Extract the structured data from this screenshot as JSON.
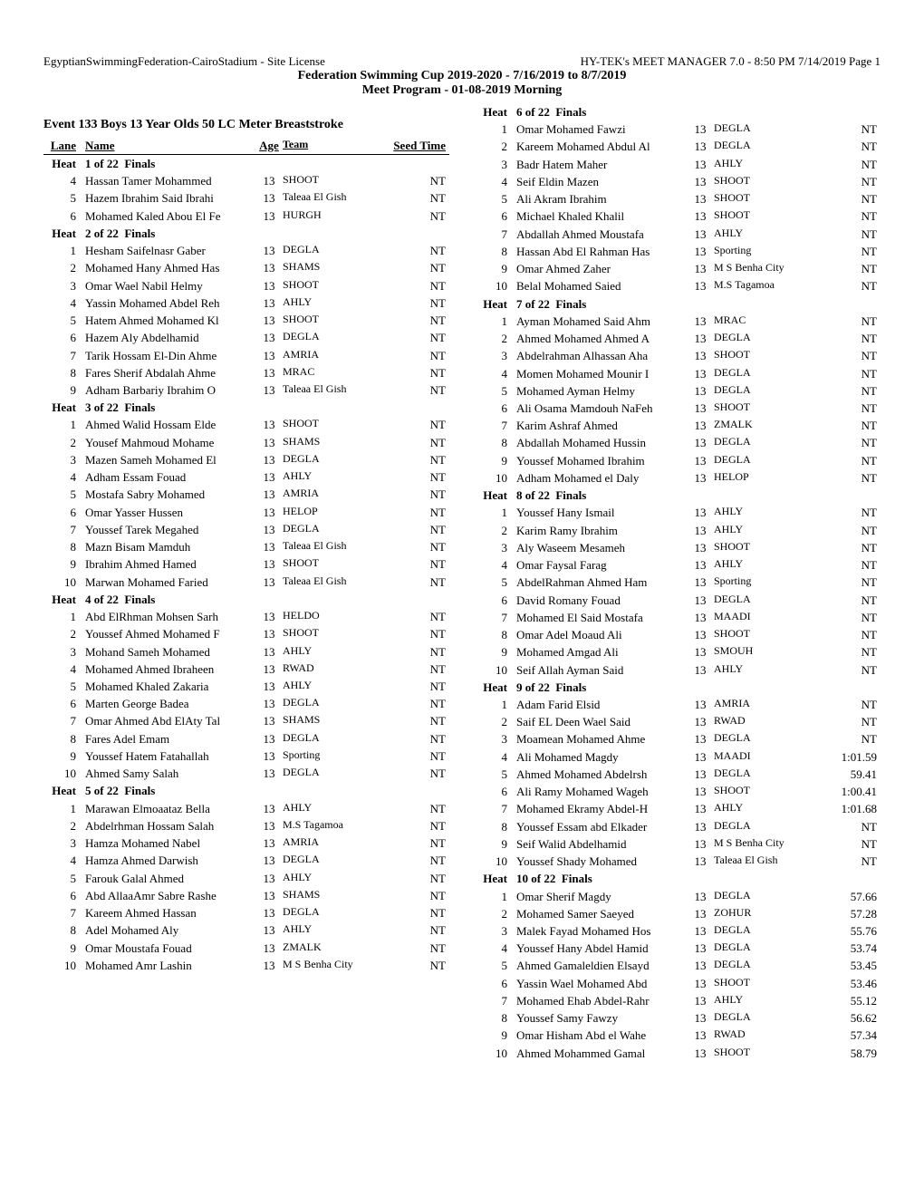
{
  "header": {
    "left": "EgyptianSwimmingFederation-CairoStadium - Site License",
    "right": "HY-TEK's MEET MANAGER 7.0 - 8:50 PM  7/14/2019  Page 1",
    "line2": "Federation Swimming Cup 2019-2020 - 7/16/2019 to 8/7/2019",
    "line3": "Meet Program - 01-08-2019 Morning"
  },
  "event_title": "Event  133   Boys 13 Year Olds 50 LC Meter Breaststroke",
  "thead": {
    "lane": "Lane",
    "name": "Name",
    "age": "Age",
    "team": "Team",
    "seed": "Seed Time"
  },
  "heat_prefix": "Heat",
  "heat_suffix": "Finals",
  "left_heats": [
    {
      "num": "1 of 22",
      "rows": [
        {
          "lane": "4",
          "name": "Hassan Tamer Mohammed",
          "age": "13",
          "team": "SHOOT",
          "seed": "NT"
        },
        {
          "lane": "5",
          "name": "Hazem Ibrahim Said Ibrahi",
          "age": "13",
          "team": "Taleaa El Gish",
          "seed": "NT"
        },
        {
          "lane": "6",
          "name": "Mohamed Kaled Abou El Fe",
          "age": "13",
          "team": "HURGH",
          "seed": "NT"
        }
      ]
    },
    {
      "num": "2 of 22",
      "rows": [
        {
          "lane": "1",
          "name": "Hesham Saifelnasr Gaber",
          "age": "13",
          "team": "DEGLA",
          "seed": "NT"
        },
        {
          "lane": "2",
          "name": "Mohamed Hany Ahmed Has",
          "age": "13",
          "team": "SHAMS",
          "seed": "NT"
        },
        {
          "lane": "3",
          "name": "Omar Wael Nabil Helmy",
          "age": "13",
          "team": "SHOOT",
          "seed": "NT"
        },
        {
          "lane": "4",
          "name": "Yassin Mohamed Abdel Reh",
          "age": "13",
          "team": "AHLY",
          "seed": "NT"
        },
        {
          "lane": "5",
          "name": "Hatem Ahmed Mohamed Kl",
          "age": "13",
          "team": "SHOOT",
          "seed": "NT"
        },
        {
          "lane": "6",
          "name": "Hazem Aly Abdelhamid",
          "age": "13",
          "team": "DEGLA",
          "seed": "NT"
        },
        {
          "lane": "7",
          "name": "Tarik Hossam El-Din Ahme",
          "age": "13",
          "team": "AMRIA",
          "seed": "NT"
        },
        {
          "lane": "8",
          "name": "Fares Sherif Abdalah Ahme",
          "age": "13",
          "team": "MRAC",
          "seed": "NT"
        },
        {
          "lane": "9",
          "name": "Adham Barbariy Ibrahim O",
          "age": "13",
          "team": "Taleaa El Gish",
          "seed": "NT"
        }
      ]
    },
    {
      "num": "3 of 22",
      "rows": [
        {
          "lane": "1",
          "name": "Ahmed Walid Hossam Elde",
          "age": "13",
          "team": "SHOOT",
          "seed": "NT"
        },
        {
          "lane": "2",
          "name": "Yousef Mahmoud Mohame",
          "age": "13",
          "team": "SHAMS",
          "seed": "NT"
        },
        {
          "lane": "3",
          "name": "Mazen Sameh Mohamed El",
          "age": "13",
          "team": "DEGLA",
          "seed": "NT"
        },
        {
          "lane": "4",
          "name": "Adham Essam Fouad",
          "age": "13",
          "team": "AHLY",
          "seed": "NT"
        },
        {
          "lane": "5",
          "name": "Mostafa Sabry Mohamed",
          "age": "13",
          "team": "AMRIA",
          "seed": "NT"
        },
        {
          "lane": "6",
          "name": "Omar Yasser Hussen",
          "age": "13",
          "team": "HELOP",
          "seed": "NT"
        },
        {
          "lane": "7",
          "name": "Youssef Tarek Megahed",
          "age": "13",
          "team": "DEGLA",
          "seed": "NT"
        },
        {
          "lane": "8",
          "name": "Mazn Bisam Mamduh",
          "age": "13",
          "team": "Taleaa El Gish",
          "seed": "NT"
        },
        {
          "lane": "9",
          "name": "Ibrahim Ahmed Hamed",
          "age": "13",
          "team": "SHOOT",
          "seed": "NT"
        },
        {
          "lane": "10",
          "name": "Marwan Mohamed Faried",
          "age": "13",
          "team": "Taleaa El Gish",
          "seed": "NT"
        }
      ]
    },
    {
      "num": "4 of 22",
      "rows": [
        {
          "lane": "1",
          "name": "Abd ElRhman Mohsen Sarh",
          "age": "13",
          "team": "HELDO",
          "seed": "NT"
        },
        {
          "lane": "2",
          "name": "Youssef Ahmed Mohamed F",
          "age": "13",
          "team": "SHOOT",
          "seed": "NT"
        },
        {
          "lane": "3",
          "name": "Mohand Sameh Mohamed",
          "age": "13",
          "team": "AHLY",
          "seed": "NT"
        },
        {
          "lane": "4",
          "name": "Mohamed Ahmed Ibraheen",
          "age": "13",
          "team": "RWAD",
          "seed": "NT"
        },
        {
          "lane": "5",
          "name": "Mohamed Khaled Zakaria",
          "age": "13",
          "team": "AHLY",
          "seed": "NT"
        },
        {
          "lane": "6",
          "name": "Marten George Badea",
          "age": "13",
          "team": "DEGLA",
          "seed": "NT"
        },
        {
          "lane": "7",
          "name": "Omar Ahmed Abd ElAty Tal",
          "age": "13",
          "team": "SHAMS",
          "seed": "NT"
        },
        {
          "lane": "8",
          "name": "Fares Adel Emam",
          "age": "13",
          "team": "DEGLA",
          "seed": "NT"
        },
        {
          "lane": "9",
          "name": "Youssef Hatem Fatahallah",
          "age": "13",
          "team": "Sporting",
          "seed": "NT"
        },
        {
          "lane": "10",
          "name": "Ahmed Samy Salah",
          "age": "13",
          "team": "DEGLA",
          "seed": "NT"
        }
      ]
    },
    {
      "num": "5 of 22",
      "rows": [
        {
          "lane": "1",
          "name": "Marawan Elmoaataz Bella",
          "age": "13",
          "team": "AHLY",
          "seed": "NT"
        },
        {
          "lane": "2",
          "name": "Abdelrhman Hossam Salah",
          "age": "13",
          "team": "M.S Tagamoa",
          "seed": "NT"
        },
        {
          "lane": "3",
          "name": "Hamza Mohamed Nabel",
          "age": "13",
          "team": "AMRIA",
          "seed": "NT"
        },
        {
          "lane": "4",
          "name": "Hamza Ahmed Darwish",
          "age": "13",
          "team": "DEGLA",
          "seed": "NT"
        },
        {
          "lane": "5",
          "name": "Farouk Galal Ahmed",
          "age": "13",
          "team": "AHLY",
          "seed": "NT"
        },
        {
          "lane": "6",
          "name": "Abd AllaaAmr Sabre Rashe",
          "age": "13",
          "team": "SHAMS",
          "seed": "NT"
        },
        {
          "lane": "7",
          "name": "Kareem Ahmed Hassan",
          "age": "13",
          "team": "DEGLA",
          "seed": "NT"
        },
        {
          "lane": "8",
          "name": "Adel Mohamed Aly",
          "age": "13",
          "team": "AHLY",
          "seed": "NT"
        },
        {
          "lane": "9",
          "name": "Omar Moustafa Fouad",
          "age": "13",
          "team": "ZMALK",
          "seed": "NT"
        },
        {
          "lane": "10",
          "name": "Mohamed Amr Lashin",
          "age": "13",
          "team": "M S Benha City",
          "seed": "NT"
        }
      ]
    }
  ],
  "right_heats": [
    {
      "num": "6 of 22",
      "rows": [
        {
          "lane": "1",
          "name": "Omar Mohamed Fawzi",
          "age": "13",
          "team": "DEGLA",
          "seed": "NT"
        },
        {
          "lane": "2",
          "name": "Kareem Mohamed Abdul Al",
          "age": "13",
          "team": "DEGLA",
          "seed": "NT"
        },
        {
          "lane": "3",
          "name": "Badr Hatem Maher",
          "age": "13",
          "team": "AHLY",
          "seed": "NT"
        },
        {
          "lane": "4",
          "name": "Seif Eldin Mazen",
          "age": "13",
          "team": "SHOOT",
          "seed": "NT"
        },
        {
          "lane": "5",
          "name": "Ali Akram Ibrahim",
          "age": "13",
          "team": "SHOOT",
          "seed": "NT"
        },
        {
          "lane": "6",
          "name": "Michael Khaled Khalil",
          "age": "13",
          "team": "SHOOT",
          "seed": "NT"
        },
        {
          "lane": "7",
          "name": "Abdallah Ahmed Moustafa",
          "age": "13",
          "team": "AHLY",
          "seed": "NT"
        },
        {
          "lane": "8",
          "name": "Hassan Abd El Rahman Has",
          "age": "13",
          "team": "Sporting",
          "seed": "NT"
        },
        {
          "lane": "9",
          "name": "Omar Ahmed Zaher",
          "age": "13",
          "team": "M S Benha City",
          "seed": "NT"
        },
        {
          "lane": "10",
          "name": "Belal Mohamed Saied",
          "age": "13",
          "team": "M.S Tagamoa",
          "seed": "NT"
        }
      ]
    },
    {
      "num": "7 of 22",
      "rows": [
        {
          "lane": "1",
          "name": "Ayman Mohamed Said Ahm",
          "age": "13",
          "team": "MRAC",
          "seed": "NT"
        },
        {
          "lane": "2",
          "name": "Ahmed Mohamed Ahmed A",
          "age": "13",
          "team": "DEGLA",
          "seed": "NT"
        },
        {
          "lane": "3",
          "name": "Abdelrahman Alhassan Aha",
          "age": "13",
          "team": "SHOOT",
          "seed": "NT"
        },
        {
          "lane": "4",
          "name": "Momen Mohamed Mounir I",
          "age": "13",
          "team": "DEGLA",
          "seed": "NT"
        },
        {
          "lane": "5",
          "name": "Mohamed Ayman Helmy",
          "age": "13",
          "team": "DEGLA",
          "seed": "NT"
        },
        {
          "lane": "6",
          "name": "Ali Osama Mamdouh NaFeh",
          "age": "13",
          "team": "SHOOT",
          "seed": "NT"
        },
        {
          "lane": "7",
          "name": "Karim Ashraf Ahmed",
          "age": "13",
          "team": "ZMALK",
          "seed": "NT"
        },
        {
          "lane": "8",
          "name": "Abdallah Mohamed Hussin",
          "age": "13",
          "team": "DEGLA",
          "seed": "NT"
        },
        {
          "lane": "9",
          "name": "Youssef Mohamed Ibrahim",
          "age": "13",
          "team": "DEGLA",
          "seed": "NT"
        },
        {
          "lane": "10",
          "name": "Adham Mohamed el Daly",
          "age": "13",
          "team": "HELOP",
          "seed": "NT"
        }
      ]
    },
    {
      "num": "8 of 22",
      "rows": [
        {
          "lane": "1",
          "name": "Youssef Hany Ismail",
          "age": "13",
          "team": "AHLY",
          "seed": "NT"
        },
        {
          "lane": "2",
          "name": "Karim Ramy Ibrahim",
          "age": "13",
          "team": "AHLY",
          "seed": "NT"
        },
        {
          "lane": "3",
          "name": "Aly Waseem Mesameh",
          "age": "13",
          "team": "SHOOT",
          "seed": "NT"
        },
        {
          "lane": "4",
          "name": "Omar Faysal Farag",
          "age": "13",
          "team": "AHLY",
          "seed": "NT"
        },
        {
          "lane": "5",
          "name": "AbdelRahman Ahmed Ham",
          "age": "13",
          "team": "Sporting",
          "seed": "NT"
        },
        {
          "lane": "6",
          "name": "David Romany Fouad",
          "age": "13",
          "team": "DEGLA",
          "seed": "NT"
        },
        {
          "lane": "7",
          "name": "Mohamed El Said Mostafa",
          "age": "13",
          "team": "MAADI",
          "seed": "NT"
        },
        {
          "lane": "8",
          "name": "Omar Adel Moaud Ali",
          "age": "13",
          "team": "SHOOT",
          "seed": "NT"
        },
        {
          "lane": "9",
          "name": "Mohamed Amgad Ali",
          "age": "13",
          "team": "SMOUH",
          "seed": "NT"
        },
        {
          "lane": "10",
          "name": "Seif Allah Ayman Said",
          "age": "13",
          "team": "AHLY",
          "seed": "NT"
        }
      ]
    },
    {
      "num": "9 of 22",
      "rows": [
        {
          "lane": "1",
          "name": "Adam Farid Elsid",
          "age": "13",
          "team": "AMRIA",
          "seed": "NT"
        },
        {
          "lane": "2",
          "name": "Saif EL Deen Wael Said",
          "age": "13",
          "team": "RWAD",
          "seed": "NT"
        },
        {
          "lane": "3",
          "name": "Moamean Mohamed Ahme",
          "age": "13",
          "team": "DEGLA",
          "seed": "NT"
        },
        {
          "lane": "4",
          "name": "Ali Mohamed Magdy",
          "age": "13",
          "team": "MAADI",
          "seed": "1:01.59"
        },
        {
          "lane": "5",
          "name": "Ahmed Mohamed Abdelrsh",
          "age": "13",
          "team": "DEGLA",
          "seed": "59.41"
        },
        {
          "lane": "6",
          "name": "Ali Ramy Mohamed Wageh",
          "age": "13",
          "team": "SHOOT",
          "seed": "1:00.41"
        },
        {
          "lane": "7",
          "name": "Mohamed Ekramy Abdel-H",
          "age": "13",
          "team": "AHLY",
          "seed": "1:01.68"
        },
        {
          "lane": "8",
          "name": "Youssef Essam abd Elkader",
          "age": "13",
          "team": "DEGLA",
          "seed": "NT"
        },
        {
          "lane": "9",
          "name": "Seif Walid Abdelhamid",
          "age": "13",
          "team": "M S Benha City",
          "seed": "NT"
        },
        {
          "lane": "10",
          "name": "Youssef Shady Mohamed",
          "age": "13",
          "team": "Taleaa El Gish",
          "seed": "NT"
        }
      ]
    },
    {
      "num": "10 of 22",
      "rows": [
        {
          "lane": "1",
          "name": "Omar Sherif Magdy",
          "age": "13",
          "team": "DEGLA",
          "seed": "57.66"
        },
        {
          "lane": "2",
          "name": "Mohamed Samer Saeyed",
          "age": "13",
          "team": "ZOHUR",
          "seed": "57.28"
        },
        {
          "lane": "3",
          "name": "Malek Fayad Mohamed Hos",
          "age": "13",
          "team": "DEGLA",
          "seed": "55.76"
        },
        {
          "lane": "4",
          "name": "Youssef Hany Abdel Hamid",
          "age": "13",
          "team": "DEGLA",
          "seed": "53.74"
        },
        {
          "lane": "5",
          "name": "Ahmed Gamaleldien Elsayd",
          "age": "13",
          "team": "DEGLA",
          "seed": "53.45"
        },
        {
          "lane": "6",
          "name": "Yassin Wael Mohamed Abd",
          "age": "13",
          "team": "SHOOT",
          "seed": "53.46"
        },
        {
          "lane": "7",
          "name": "Mohamed Ehab Abdel-Rahr",
          "age": "13",
          "team": "AHLY",
          "seed": "55.12"
        },
        {
          "lane": "8",
          "name": "Youssef Samy Fawzy",
          "age": "13",
          "team": "DEGLA",
          "seed": "56.62"
        },
        {
          "lane": "9",
          "name": "Omar Hisham Abd el Wahe",
          "age": "13",
          "team": "RWAD",
          "seed": "57.34"
        },
        {
          "lane": "10",
          "name": "Ahmed Mohammed Gamal",
          "age": "13",
          "team": "SHOOT",
          "seed": "58.79"
        }
      ]
    }
  ]
}
